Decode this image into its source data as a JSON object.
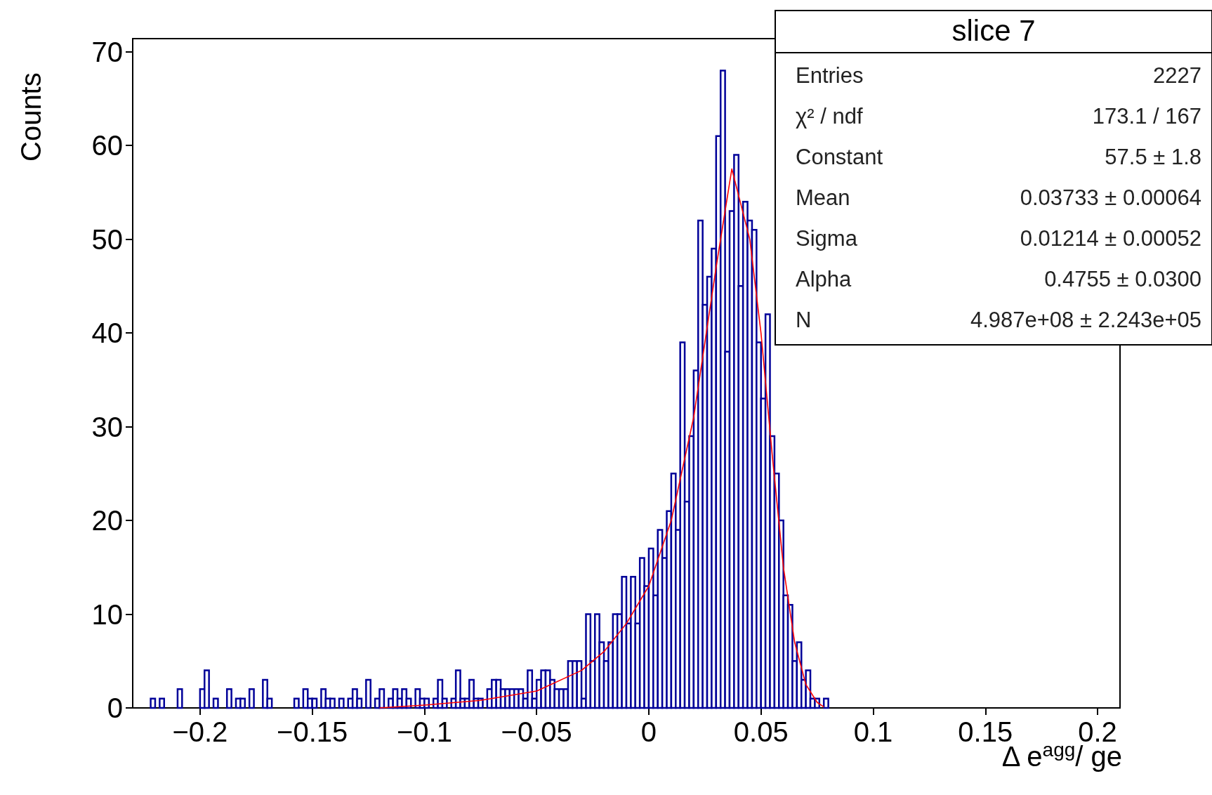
{
  "chart_data": {
    "type": "histogram",
    "title": "slice 7",
    "xlabel": "Δ e$^{agg}$/ ge",
    "ylabel": "Counts",
    "bins": [
      -0.23,
      -0.228,
      -0.226,
      -0.224,
      -0.222,
      -0.22,
      -0.218,
      -0.216,
      -0.214,
      -0.212,
      -0.21,
      -0.208,
      -0.206,
      -0.204,
      -0.202,
      -0.2,
      -0.198,
      -0.196,
      -0.194,
      -0.192,
      -0.19,
      -0.188,
      -0.186,
      -0.184,
      -0.182,
      -0.18,
      -0.178,
      -0.176,
      -0.174,
      -0.172,
      -0.17,
      -0.168,
      -0.166,
      -0.164,
      -0.162,
      -0.16,
      -0.158,
      -0.156,
      -0.154,
      -0.152,
      -0.15,
      -0.148,
      -0.146,
      -0.144,
      -0.142,
      -0.14,
      -0.138,
      -0.136,
      -0.134,
      -0.132,
      -0.13,
      -0.128,
      -0.126,
      -0.124,
      -0.122,
      -0.12,
      -0.118,
      -0.116,
      -0.114,
      -0.112,
      -0.11,
      -0.108,
      -0.106,
      -0.104,
      -0.102,
      -0.1,
      -0.098,
      -0.096,
      -0.094,
      -0.092,
      -0.09,
      -0.088,
      -0.086,
      -0.084,
      -0.082,
      -0.08,
      -0.078,
      -0.076,
      -0.074,
      -0.072,
      -0.07,
      -0.068,
      -0.066,
      -0.064,
      -0.062,
      -0.06,
      -0.058,
      -0.056,
      -0.054,
      -0.052,
      -0.05,
      -0.048,
      -0.046,
      -0.044,
      -0.042,
      -0.04,
      -0.038,
      -0.036,
      -0.034,
      -0.032,
      -0.03,
      -0.028,
      -0.026,
      -0.024,
      -0.022,
      -0.02,
      -0.018,
      -0.016,
      -0.014,
      -0.012,
      -0.01,
      -0.008,
      -0.006,
      -0.004,
      -0.002,
      0,
      0.002,
      0.004,
      0.006,
      0.008,
      0.01,
      0.012,
      0.014,
      0.016,
      0.018,
      0.02,
      0.022,
      0.024,
      0.026,
      0.028,
      0.03,
      0.032,
      0.034,
      0.036,
      0.038,
      0.04,
      0.042,
      0.044,
      0.046,
      0.048,
      0.05,
      0.052,
      0.054,
      0.056,
      0.058,
      0.06,
      0.062,
      0.064,
      0.066,
      0.068,
      0.07,
      0.072,
      0.074,
      0.076,
      0.078,
      0.08,
      0.082,
      0.084,
      0.086,
      0.088,
      0.09,
      0.092,
      0.094,
      0.096,
      0.098,
      0.1,
      0.102,
      0.104,
      0.106,
      0.108,
      0.11,
      0.112,
      0.114,
      0.116,
      0.118,
      0.12,
      0.122,
      0.124,
      0.126,
      0.128,
      0.13,
      0.132,
      0.134,
      0.136,
      0.138,
      0.14,
      0.142,
      0.144,
      0.146,
      0.148,
      0.15,
      0.152,
      0.154,
      0.156,
      0.158,
      0.16,
      0.162,
      0.164,
      0.166,
      0.168,
      0.17,
      0.172,
      0.174,
      0.176,
      0.178,
      0.18,
      0.182,
      0.184,
      0.186,
      0.188,
      0.19,
      0.192,
      0.194,
      0.196,
      0.198,
      0.2,
      0.202,
      0.204,
      0.206,
      0.208,
      0.21
    ],
    "series": [
      {
        "type": "histogram",
        "color": "#000099",
        "values": [
          0,
          0,
          0,
          0,
          1,
          0,
          1,
          0,
          0,
          0,
          2,
          0,
          0,
          0,
          0,
          2,
          4,
          0,
          1,
          0,
          0,
          2,
          0,
          1,
          1,
          0,
          2,
          0,
          0,
          3,
          1,
          0,
          0,
          0,
          0,
          0,
          1,
          0,
          2,
          1,
          1,
          0,
          2,
          1,
          1,
          0,
          1,
          0,
          1,
          2,
          1,
          0,
          3,
          0,
          1,
          2,
          0,
          1,
          2,
          1,
          2,
          1,
          0,
          2,
          1,
          1,
          0,
          1,
          3,
          1,
          0,
          1,
          4,
          1,
          1,
          3,
          1,
          1,
          0,
          2,
          3,
          3,
          2,
          2,
          2,
          2,
          2,
          1,
          4,
          1,
          3,
          4,
          4,
          3,
          2,
          2,
          2,
          5,
          5,
          5,
          1,
          10,
          5,
          10,
          7,
          5,
          7,
          10,
          10,
          14,
          9,
          14,
          9,
          16,
          13,
          17,
          12,
          19,
          16,
          21,
          25,
          19,
          39,
          22,
          29,
          36,
          52,
          43,
          46,
          49,
          61,
          68,
          38,
          53,
          59,
          45,
          54,
          52,
          51,
          39,
          33,
          42,
          29,
          25,
          20,
          12,
          11,
          5,
          7,
          3,
          4,
          1,
          1,
          0,
          1,
          0,
          0,
          0,
          0,
          0,
          0,
          0,
          0,
          0,
          0,
          0,
          0,
          0,
          0,
          0,
          0,
          0,
          0,
          0,
          0,
          0,
          0,
          0,
          0,
          0,
          0,
          0,
          0,
          0,
          0,
          0,
          0,
          0,
          0,
          0,
          0,
          0,
          0,
          0,
          0,
          0,
          0,
          0,
          0,
          0,
          0,
          0,
          0,
          0,
          0,
          0,
          0,
          0,
          0,
          0,
          0,
          0,
          0,
          0,
          0,
          0,
          0,
          0,
          0,
          0
        ]
      },
      {
        "type": "line",
        "color": "#ff0000",
        "x": [
          -0.12,
          -0.1,
          -0.075,
          -0.05,
          -0.03,
          -0.02,
          -0.01,
          0,
          0.01,
          0.02,
          0.03,
          0.037,
          0.045,
          0.05,
          0.055,
          0.06,
          0.065,
          0.07,
          0.075,
          0.078
        ],
        "values": [
          0,
          0.3,
          0.8,
          1.8,
          4,
          6,
          9,
          13,
          20,
          31,
          47,
          57.5,
          50,
          40,
          27,
          15,
          7,
          2.5,
          0.6,
          0.1
        ]
      }
    ],
    "xlim": [
      -0.23,
      0.21
    ],
    "ylim": [
      0,
      71.4
    ],
    "xticks": [
      {
        "value": -0.2,
        "label": "−0.2"
      },
      {
        "value": -0.15,
        "label": "−0.15"
      },
      {
        "value": -0.1,
        "label": "−0.1"
      },
      {
        "value": -0.05,
        "label": "−0.05"
      },
      0,
      0.05,
      0.1,
      0.15,
      0.2
    ],
    "yticks": [
      0,
      10,
      20,
      30,
      40,
      50,
      60,
      70
    ],
    "annotations": [
      "Entries",
      "2227",
      "χ² / ndf",
      "173.1 / 167",
      "Constant",
      "57.5  ± 1.8",
      "Mean",
      "0.03733  ± 0.00064",
      "Sigma",
      "0.01214  ± 0.00052",
      "Alpha",
      "0.4755  ± 0.0300",
      "N",
      "4.987e+08  ± 2.243e+05"
    ]
  }
}
